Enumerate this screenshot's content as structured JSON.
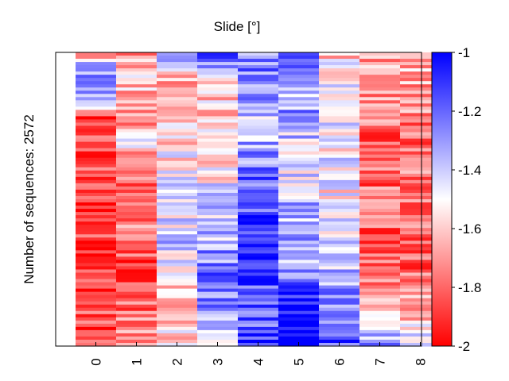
{
  "chart_data": {
    "type": "heatmap",
    "title": "Slide [°]",
    "xlabel": "",
    "ylabel": "Number of sequences: 2572",
    "x_categories": [
      "0",
      "1",
      "2",
      "3",
      "4",
      "5",
      "6",
      "7",
      "8"
    ],
    "n_sequences": 2572,
    "rows_rendered": 92,
    "color_range": [
      -2,
      -1
    ],
    "colormap": {
      "low": "#ff0000",
      "mid": "#ffffff",
      "high": "#0000ff"
    },
    "colorbar_ticks": [
      "-1",
      "-1.2",
      "-1.4",
      "-1.6",
      "-1.8",
      "-2"
    ],
    "column_profiles": [
      [
        [
          0,
          -1.88
        ],
        [
          0.05,
          -1.3
        ],
        [
          0.18,
          -1.32
        ],
        [
          0.2,
          -1.86
        ],
        [
          0.42,
          -1.87
        ],
        [
          0.6,
          -1.88
        ],
        [
          0.85,
          -1.86
        ],
        [
          1,
          -1.84
        ]
      ],
      [
        [
          0,
          -1.78
        ],
        [
          0.08,
          -1.58
        ],
        [
          0.2,
          -1.72
        ],
        [
          0.32,
          -1.55
        ],
        [
          0.4,
          -1.82
        ],
        [
          0.55,
          -1.75
        ],
        [
          0.75,
          -1.85
        ],
        [
          1,
          -1.74
        ]
      ],
      [
        [
          0,
          -1.2
        ],
        [
          0.08,
          -1.62
        ],
        [
          0.2,
          -1.66
        ],
        [
          0.32,
          -1.55
        ],
        [
          0.5,
          -1.48
        ],
        [
          0.65,
          -1.4
        ],
        [
          0.8,
          -1.62
        ],
        [
          1,
          -1.55
        ]
      ],
      [
        [
          0,
          -1.02
        ],
        [
          0.08,
          -1.5
        ],
        [
          0.2,
          -1.65
        ],
        [
          0.4,
          -1.52
        ],
        [
          0.6,
          -1.38
        ],
        [
          0.8,
          -1.2
        ],
        [
          1,
          -1.4
        ]
      ],
      [
        [
          0,
          -1.28
        ],
        [
          0.1,
          -1.22
        ],
        [
          0.25,
          -1.38
        ],
        [
          0.45,
          -1.2
        ],
        [
          0.6,
          -1.1
        ],
        [
          0.8,
          -1.18
        ],
        [
          1,
          -1.15
        ]
      ],
      [
        [
          0,
          -1.02
        ],
        [
          0.1,
          -1.4
        ],
        [
          0.2,
          -1.3
        ],
        [
          0.35,
          -1.45
        ],
        [
          0.55,
          -1.35
        ],
        [
          0.75,
          -1.3
        ],
        [
          0.85,
          -1.02
        ],
        [
          1,
          -1.0
        ]
      ],
      [
        [
          0,
          -1.6
        ],
        [
          0.1,
          -1.5
        ],
        [
          0.3,
          -1.48
        ],
        [
          0.5,
          -1.52
        ],
        [
          0.7,
          -1.45
        ],
        [
          0.85,
          -1.25
        ],
        [
          1,
          -1.15
        ]
      ],
      [
        [
          0,
          -1.68
        ],
        [
          0.15,
          -1.72
        ],
        [
          0.3,
          -1.82
        ],
        [
          0.5,
          -1.78
        ],
        [
          0.7,
          -1.8
        ],
        [
          0.85,
          -1.62
        ],
        [
          1,
          -1.3
        ]
      ],
      [
        [
          0,
          -1.62
        ],
        [
          0.15,
          -1.68
        ],
        [
          0.3,
          -1.78
        ],
        [
          0.5,
          -1.72
        ],
        [
          0.7,
          -1.82
        ],
        [
          0.85,
          -1.7
        ],
        [
          1,
          -1.45
        ]
      ]
    ]
  }
}
